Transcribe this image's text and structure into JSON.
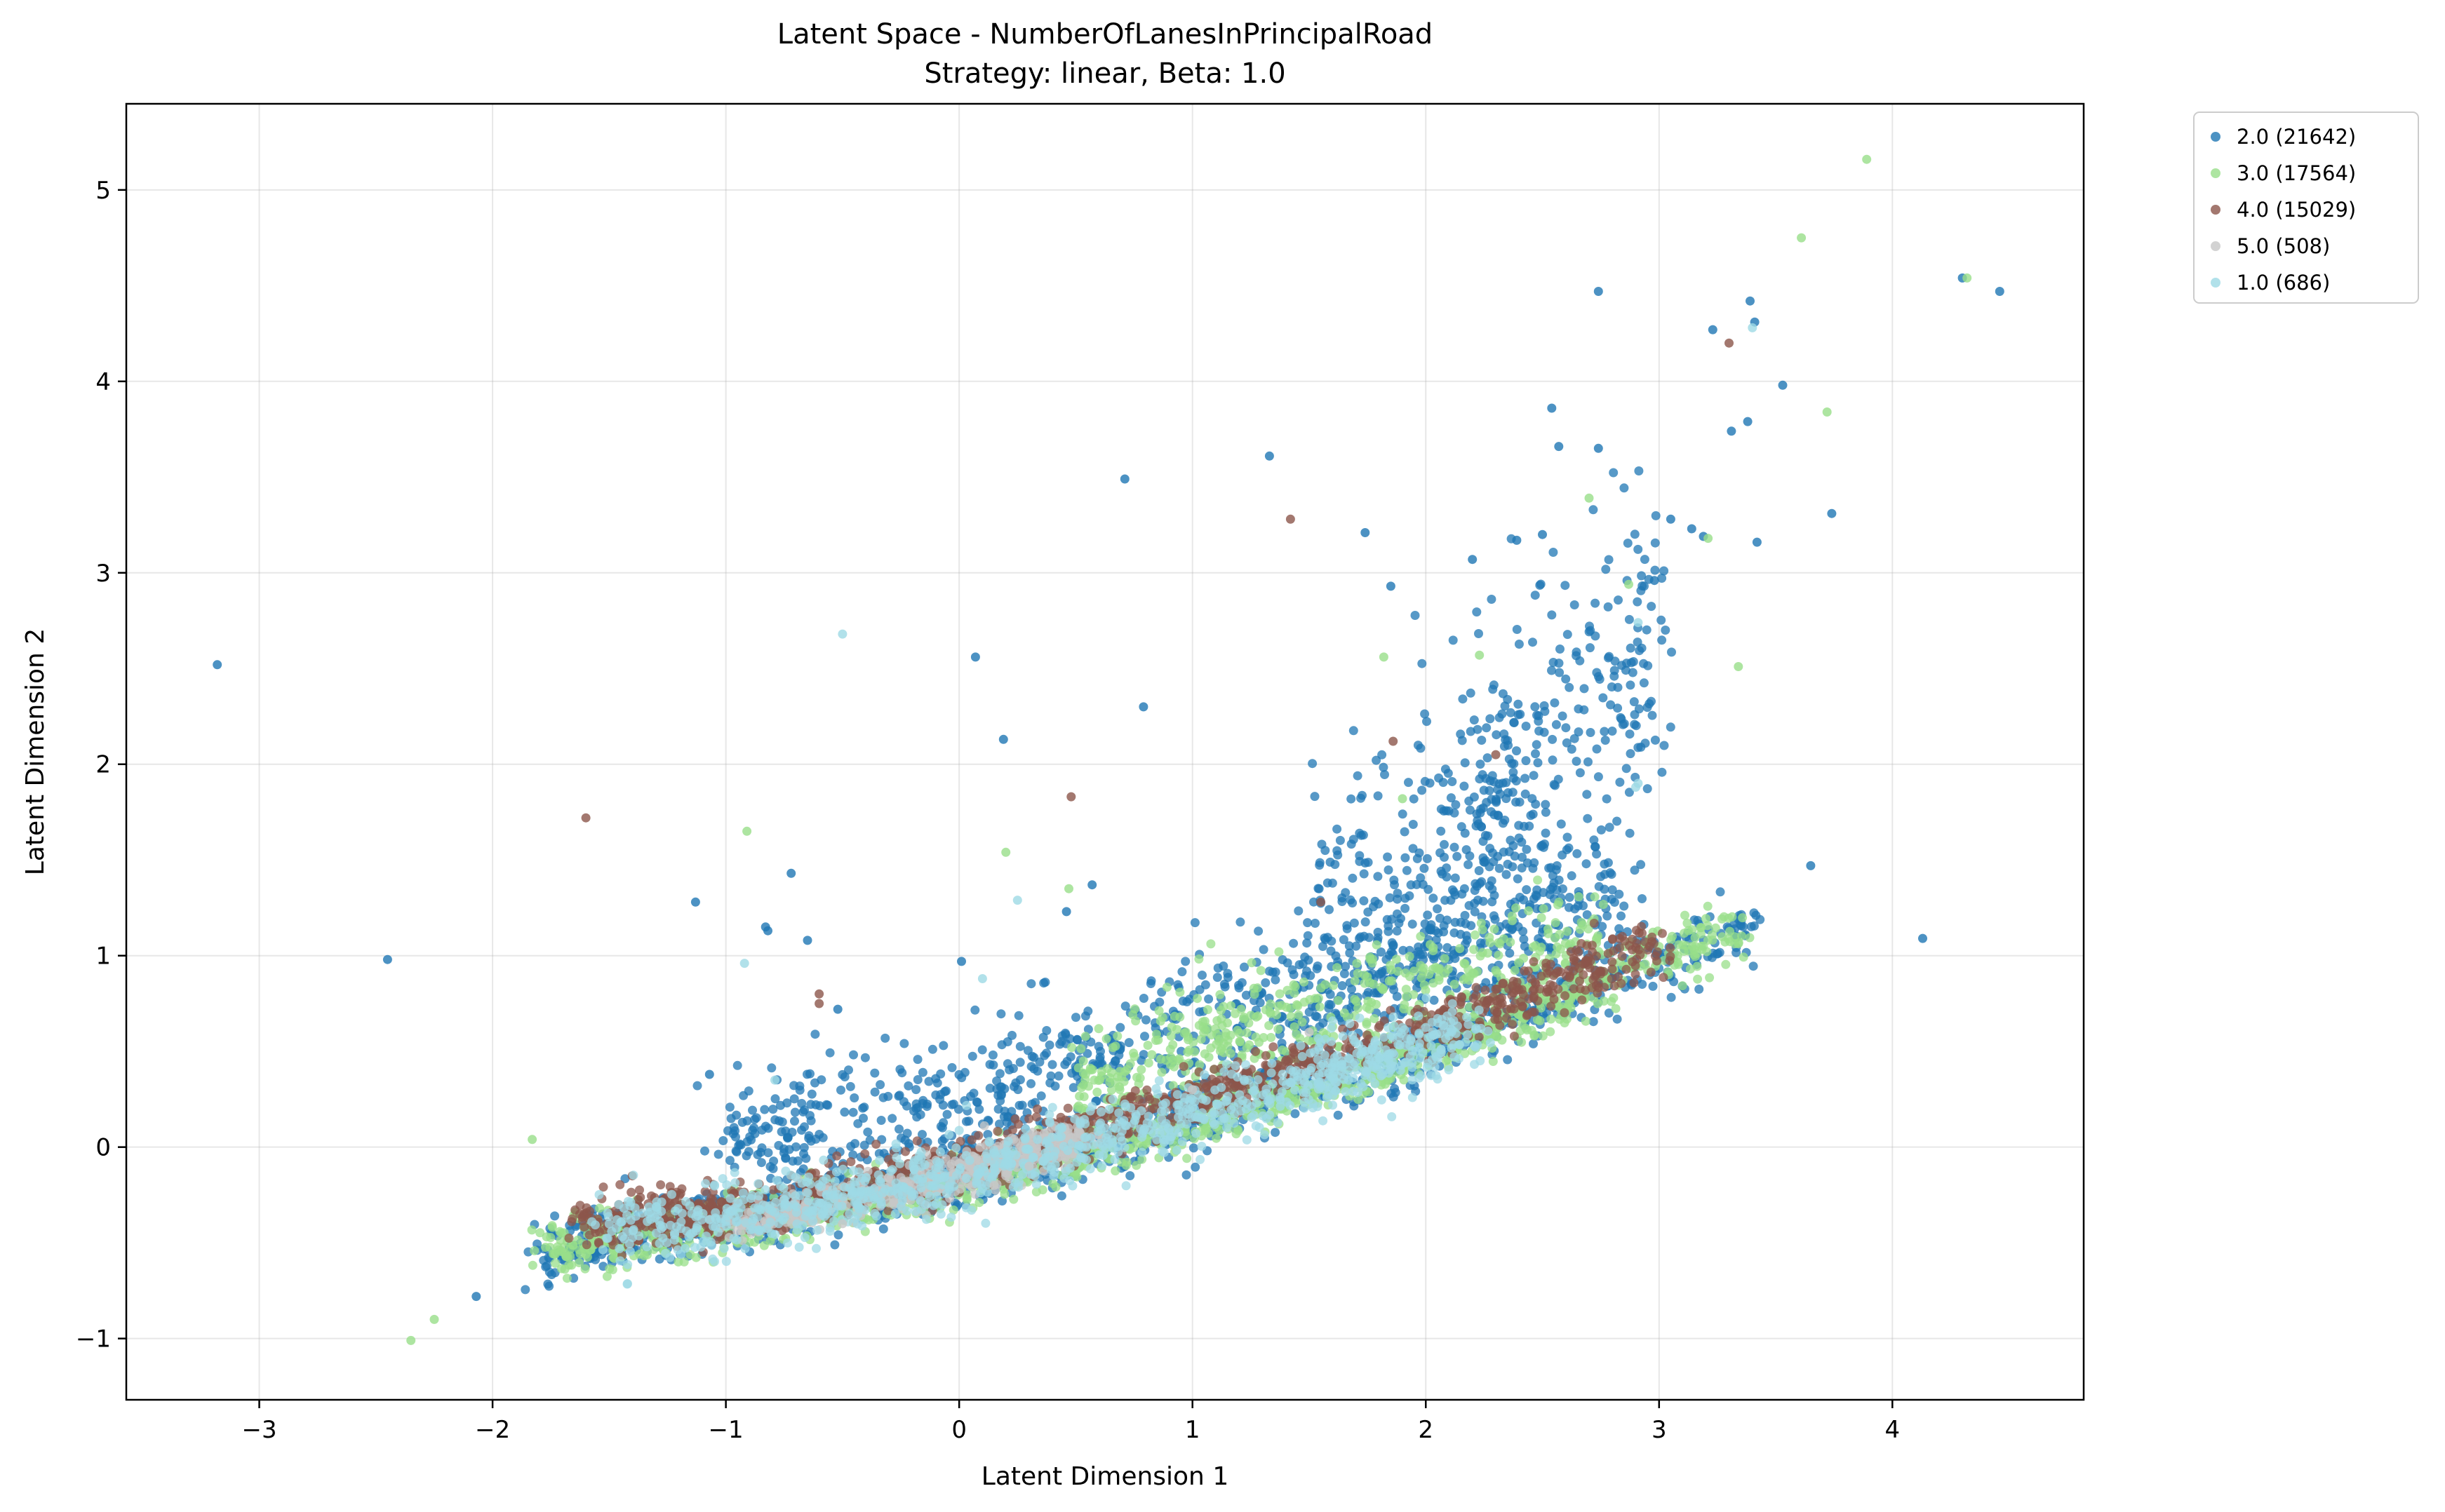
{
  "figure": {
    "title_line1": "Latent Space - NumberOfLanesInPrincipalRoad",
    "title_line2": "Strategy: linear, Beta: 1.0"
  },
  "chart_data": {
    "type": "scatter",
    "title": "Latent Space - NumberOfLanesInPrincipalRoad",
    "subtitle": "Strategy: linear, Beta: 1.0",
    "xlabel": "Latent Dimension 1",
    "ylabel": "Latent Dimension 2",
    "xlim": [
      -3.57,
      4.82
    ],
    "ylim": [
      -1.32,
      5.45
    ],
    "xticks": [
      -3,
      -2,
      -1,
      0,
      1,
      2,
      3,
      4
    ],
    "yticks": [
      -1,
      0,
      1,
      2,
      3,
      4,
      5
    ],
    "grid": true,
    "legend_position": "outside-top-right",
    "series": [
      {
        "name": "2.0 (21642)",
        "color": "#1f77b4",
        "points": [
          [
            -3.18,
            2.52
          ],
          [
            -2.45,
            0.98
          ],
          [
            -2.07,
            -0.78
          ],
          [
            -1.13,
            1.28
          ],
          [
            -0.72,
            1.43
          ],
          [
            -0.52,
            0.72
          ],
          [
            0.07,
            2.56
          ],
          [
            0.19,
            2.13
          ],
          [
            0.71,
            3.49
          ],
          [
            0.79,
            2.3
          ],
          [
            1.33,
            3.61
          ],
          [
            1.74,
            3.21
          ],
          [
            2.54,
            3.86
          ],
          [
            2.57,
            3.66
          ],
          [
            2.74,
            3.65
          ],
          [
            2.74,
            4.47
          ],
          [
            3.23,
            4.27
          ],
          [
            3.39,
            4.42
          ],
          [
            3.41,
            4.31
          ],
          [
            3.38,
            3.79
          ],
          [
            3.31,
            3.74
          ],
          [
            3.53,
            3.98
          ],
          [
            3.74,
            3.31
          ],
          [
            4.3,
            4.54
          ],
          [
            4.46,
            4.47
          ],
          [
            4.13,
            1.09
          ],
          [
            3.65,
            1.47
          ],
          [
            2.98,
            2.96
          ],
          [
            3.19,
            3.19
          ],
          [
            3.42,
            3.16
          ],
          [
            3.05,
            3.28
          ],
          [
            3.14,
            3.23
          ],
          [
            1.85,
            2.93
          ],
          [
            2.2,
            3.07
          ],
          [
            2.39,
            3.17
          ],
          [
            2.5,
            3.2
          ],
          [
            -1.07,
            0.38
          ],
          [
            -0.83,
            1.15
          ],
          [
            -0.82,
            1.13
          ],
          [
            -0.65,
            1.08
          ],
          [
            0.01,
            0.97
          ],
          [
            0.46,
            1.23
          ],
          [
            0.57,
            1.37
          ]
        ]
      },
      {
        "name": "3.0 (17564)",
        "color": "#98df8a",
        "points": [
          [
            3.89,
            5.16
          ],
          [
            3.61,
            4.75
          ],
          [
            4.32,
            4.54
          ],
          [
            3.72,
            3.84
          ],
          [
            2.7,
            3.39
          ],
          [
            3.34,
            2.51
          ],
          [
            -2.35,
            -1.01
          ],
          [
            -2.25,
            -0.9
          ],
          [
            -1.83,
            0.04
          ],
          [
            -0.91,
            1.65
          ],
          [
            0.2,
            1.54
          ],
          [
            1.82,
            2.56
          ],
          [
            2.23,
            2.57
          ],
          [
            2.87,
            2.94
          ],
          [
            3.21,
            3.18
          ],
          [
            0.47,
            1.35
          ],
          [
            1.9,
            1.82
          ]
        ]
      },
      {
        "name": "4.0 (15029)",
        "color": "#8c564b",
        "points": [
          [
            -1.6,
            1.72
          ],
          [
            1.42,
            3.28
          ],
          [
            3.3,
            4.2
          ],
          [
            0.48,
            1.83
          ],
          [
            1.86,
            2.12
          ],
          [
            2.3,
            2.05
          ],
          [
            1.55,
            1.28
          ],
          [
            -0.6,
            0.8
          ],
          [
            -0.6,
            0.75
          ]
        ]
      },
      {
        "name": "5.0 (508)",
        "color": "#c7c7c7",
        "points": [
          [
            0.2,
            -0.15
          ],
          [
            0.3,
            -0.1
          ],
          [
            0.15,
            -0.2
          ],
          [
            0.5,
            0.05
          ],
          [
            1.0,
            0.3
          ],
          [
            1.5,
            0.6
          ],
          [
            -0.5,
            -0.4
          ]
        ]
      },
      {
        "name": "1.0 (686)",
        "color": "#9edae5",
        "points": [
          [
            -0.5,
            2.68
          ],
          [
            -0.92,
            0.96
          ],
          [
            -0.79,
            0.35
          ],
          [
            0.25,
            1.29
          ],
          [
            2.91,
            2.74
          ],
          [
            2.91,
            1.9
          ],
          [
            3.4,
            4.28
          ],
          [
            2.9,
            1.88
          ],
          [
            0.1,
            0.88
          ]
        ]
      }
    ],
    "density": [
      {
        "series": 0,
        "spread": 0.08,
        "segments": [
          [
            -1.8,
            -0.55,
            -1.0,
            -0.38
          ],
          [
            -1.0,
            -0.38,
            0.0,
            -0.17
          ],
          [
            0.0,
            -0.17,
            1.0,
            0.15
          ],
          [
            1.0,
            0.15,
            2.0,
            0.5
          ],
          [
            2.0,
            0.5,
            3.4,
            1.15
          ]
        ]
      },
      {
        "series": 0,
        "spread": 0.2,
        "segments": [
          [
            -1.0,
            0.0,
            0.0,
            0.2
          ],
          [
            0.0,
            0.2,
            1.0,
            0.6
          ],
          [
            1.0,
            0.6,
            2.0,
            1.0
          ],
          [
            2.0,
            1.0,
            2.9,
            1.35
          ]
        ]
      },
      {
        "series": 0,
        "spread": 0.38,
        "segments": [
          [
            1.5,
            1.1,
            2.4,
            1.9
          ],
          [
            2.2,
            1.8,
            3.0,
            2.6
          ]
        ]
      },
      {
        "series": 1,
        "spread": 0.07,
        "segments": [
          [
            -1.8,
            -0.53,
            -1.0,
            -0.4
          ],
          [
            -1.0,
            -0.4,
            0.0,
            -0.2
          ],
          [
            0.0,
            -0.2,
            1.0,
            0.12
          ],
          [
            1.0,
            0.12,
            2.0,
            0.48
          ],
          [
            2.0,
            0.48,
            3.35,
            1.15
          ]
        ]
      },
      {
        "series": 1,
        "spread": 0.15,
        "segments": [
          [
            0.5,
            0.3,
            1.5,
            0.7
          ],
          [
            1.5,
            0.7,
            2.8,
            1.1
          ]
        ]
      },
      {
        "series": 2,
        "spread": 0.07,
        "segments": [
          [
            -1.6,
            -0.4,
            -1.0,
            -0.35
          ],
          [
            -1.0,
            -0.35,
            0.0,
            -0.1
          ],
          [
            0.0,
            -0.1,
            1.0,
            0.25
          ],
          [
            1.0,
            0.25,
            2.0,
            0.62
          ],
          [
            2.0,
            0.62,
            3.0,
            1.05
          ]
        ]
      },
      {
        "series": 3,
        "spread": 0.05,
        "segments": [
          [
            -1.0,
            -0.4,
            0.0,
            -0.15
          ],
          [
            0.0,
            -0.15,
            0.5,
            0.05
          ]
        ]
      },
      {
        "series": 4,
        "spread": 0.09,
        "segments": [
          [
            -1.5,
            -0.45,
            -0.5,
            -0.28
          ],
          [
            -0.5,
            -0.28,
            0.5,
            0.0
          ],
          [
            0.5,
            0.0,
            1.5,
            0.35
          ],
          [
            1.5,
            0.35,
            2.2,
            0.6
          ]
        ]
      }
    ]
  }
}
